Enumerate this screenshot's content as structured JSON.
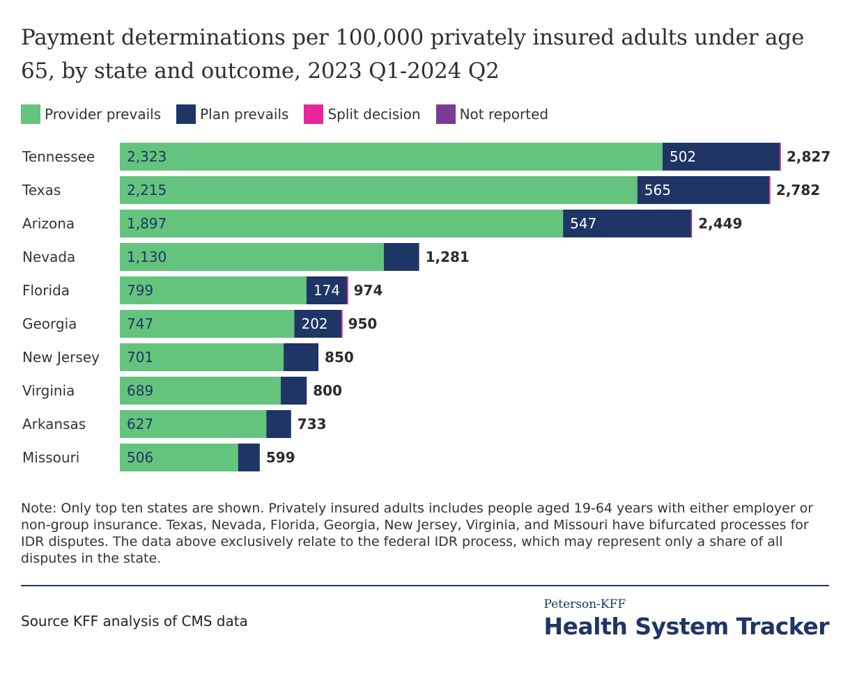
{
  "title": "Payment determinations per 100,000 privately insured adults under age 65, by state and outcome, 2023 Q1-2024 Q2",
  "legend": [
    {
      "label": "Provider prevails",
      "color": "#64c47d"
    },
    {
      "label": "Plan prevails",
      "color": "#1f3566"
    },
    {
      "label": "Split decision",
      "color": "#e8259a"
    },
    {
      "label": "Not reported",
      "color": "#7b3a96"
    }
  ],
  "chart_data": {
    "type": "bar",
    "orientation": "horizontal",
    "stacked": true,
    "categories": [
      "Tennessee",
      "Texas",
      "Arizona",
      "Nevada",
      "Florida",
      "Georgia",
      "New Jersey",
      "Virginia",
      "Arkansas",
      "Missouri"
    ],
    "series": [
      {
        "name": "Provider prevails",
        "color": "#64c47d",
        "values": [
          2323,
          2215,
          1897,
          1130,
          799,
          747,
          701,
          689,
          627,
          506
        ]
      },
      {
        "name": "Plan prevails",
        "color": "#1f3566",
        "values": [
          502,
          565,
          547,
          151,
          174,
          202,
          149,
          111,
          106,
          93
        ]
      },
      {
        "name": "Split decision",
        "color": "#e8259a",
        "values": [
          2,
          2,
          0,
          0,
          1,
          1,
          0,
          0,
          0,
          0
        ]
      },
      {
        "name": "Not reported",
        "color": "#7b3a96",
        "values": [
          0,
          0,
          5,
          0,
          0,
          0,
          0,
          0,
          0,
          0
        ]
      }
    ],
    "labels_provider": [
      "2,323",
      "2,215",
      "1,897",
      "1,130",
      "799",
      "747",
      "701",
      "689",
      "627",
      "506"
    ],
    "labels_plan": [
      "502",
      "565",
      "547",
      "",
      "174",
      "202",
      "",
      "",
      "",
      ""
    ],
    "totals": [
      "2,827",
      "2,782",
      "2,449",
      "1,281",
      "974",
      "950",
      "850",
      "800",
      "733",
      "599"
    ],
    "xlim": [
      0,
      2827
    ],
    "grid": false
  },
  "note": "Note: Only top ten states are shown. Privately insured adults includes people aged 19-64 years with either employer or non-group insurance. Texas, Nevada, Florida, Georgia, New Jersey, Virginia, and Missouri have bifurcated processes for IDR disputes. The data above exclusively relate to the federal IDR process, which may represent only a share of all disputes in the state.",
  "source": "Source KFF analysis of CMS data",
  "logo": {
    "top": "Peterson-KFF",
    "main": "Health System Tracker"
  }
}
